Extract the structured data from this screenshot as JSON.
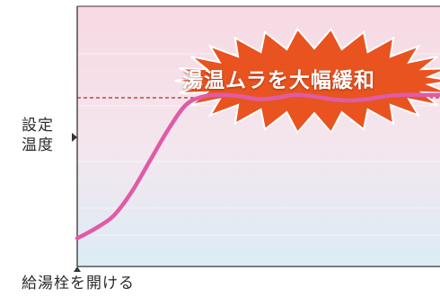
{
  "chart_data": {
    "type": "line",
    "title": "",
    "ylabel_lines": [
      "設定",
      "温度"
    ],
    "xlabel": "給湯栓を開ける",
    "annotation": "湯温ムラを大幅緩和",
    "reference_line": {
      "label": "設定温度",
      "y": 1.0,
      "style": "dashed",
      "color": "#c0392b"
    },
    "x": [
      0.0,
      0.05,
      0.1,
      0.15,
      0.2,
      0.25,
      0.3,
      0.35,
      0.4,
      0.45,
      0.5,
      0.55,
      0.6,
      0.65,
      0.7,
      0.75,
      0.8,
      0.85,
      0.9,
      0.95,
      1.0
    ],
    "series": [
      {
        "values": [
          0.0,
          0.07,
          0.16,
          0.33,
          0.55,
          0.77,
          0.95,
          1.01,
          1.02,
          1.01,
          0.99,
          1.0,
          1.02,
          1.01,
          0.99,
          0.98,
          0.99,
          1.01,
          1.02,
          1.02,
          1.02
        ],
        "color": "#e05ba7"
      }
    ],
    "xlim": [
      0,
      1
    ],
    "ylim": [
      -0.2,
      1.65
    ],
    "grid": false,
    "legend": "none",
    "background_color": "#f3d0dc",
    "burst_color": "#e9531f"
  }
}
